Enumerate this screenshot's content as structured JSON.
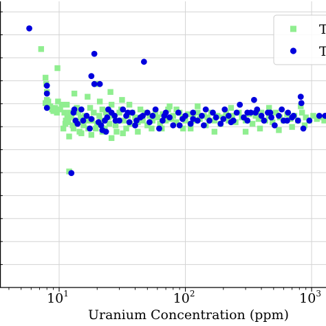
{
  "chart_data": {
    "type": "scatter",
    "xlabel": "Uranium Concentration (ppm)",
    "ylabel": "",
    "xscale": "log",
    "xlim": [
      3.4,
      1300
    ],
    "ylim": [
      -0.5,
      1.3
    ],
    "grid": true,
    "legend_placement": "top-right",
    "x_ticks": [
      {
        "base": "10",
        "exp": "1"
      },
      {
        "base": "10",
        "exp": "2"
      },
      {
        "base": "10",
        "exp": "3"
      }
    ],
    "series": [
      {
        "name": "T",
        "marker": "square",
        "color": "#90EE90",
        "points": [
          [
            7.2,
            1.0
          ],
          [
            7.8,
            0.82
          ],
          [
            7.9,
            0.78
          ],
          [
            8.0,
            0.73
          ],
          [
            8.0,
            0.68
          ],
          [
            7.8,
            0.66
          ],
          [
            7.9,
            0.66
          ],
          [
            8.2,
            0.67
          ],
          [
            8.5,
            0.64
          ],
          [
            8.8,
            0.62
          ],
          [
            9.0,
            0.61
          ],
          [
            9.3,
            0.63
          ],
          [
            9.6,
            0.6
          ],
          [
            9.8,
            0.67
          ],
          [
            10.2,
            0.62
          ],
          [
            10.5,
            0.65
          ],
          [
            9.7,
            0.88
          ],
          [
            11.0,
            0.6
          ],
          [
            11.3,
            0.55
          ],
          [
            11.6,
            0.57
          ],
          [
            11.2,
            0.53
          ],
          [
            11.8,
            0.54
          ],
          [
            12.0,
            0.57
          ],
          [
            12.2,
            0.6
          ],
          [
            12.5,
            0.58
          ],
          [
            12.8,
            0.52
          ],
          [
            13.0,
            0.5
          ],
          [
            13.4,
            0.55
          ],
          [
            13.8,
            0.63
          ],
          [
            14.2,
            0.6
          ],
          [
            14.8,
            0.57
          ],
          [
            15.2,
            0.54
          ],
          [
            15.6,
            0.52
          ],
          [
            16.0,
            0.58
          ],
          [
            16.5,
            0.55
          ],
          [
            17.0,
            0.5
          ],
          [
            17.6,
            0.63
          ],
          [
            18.2,
            0.55
          ],
          [
            18.8,
            0.6
          ],
          [
            19.5,
            0.78
          ],
          [
            20.0,
            0.53
          ],
          [
            20.8,
            0.58
          ],
          [
            21.5,
            0.55
          ],
          [
            22.0,
            0.62
          ],
          [
            23.0,
            0.5
          ],
          [
            23.5,
            0.6
          ],
          [
            24.5,
            0.57
          ],
          [
            25.0,
            0.53
          ],
          [
            26.0,
            0.65
          ],
          [
            27.0,
            0.58
          ],
          [
            28.0,
            0.52
          ],
          [
            29.0,
            0.55
          ],
          [
            30.0,
            0.6
          ],
          [
            31.0,
            0.62
          ],
          [
            32.5,
            0.55
          ],
          [
            34.0,
            0.5
          ],
          [
            35.0,
            0.58
          ],
          [
            36.5,
            0.53
          ],
          [
            38.0,
            0.6
          ],
          [
            40.0,
            0.57
          ],
          [
            42.0,
            0.54
          ],
          [
            44.0,
            0.62
          ],
          [
            46.0,
            0.55
          ],
          [
            48.0,
            0.6
          ],
          [
            50.0,
            0.52
          ],
          [
            52.0,
            0.58
          ],
          [
            55.0,
            0.55
          ],
          [
            58.0,
            0.6
          ],
          [
            60.0,
            0.57
          ],
          [
            63.0,
            0.53
          ],
          [
            66.0,
            0.59
          ],
          [
            70.0,
            0.55
          ],
          [
            73.0,
            0.62
          ],
          [
            77.0,
            0.56
          ],
          [
            80.0,
            0.58
          ],
          [
            85.0,
            0.54
          ],
          [
            90.0,
            0.6
          ],
          [
            95.0,
            0.57
          ],
          [
            100.0,
            0.55
          ],
          [
            105.0,
            0.59
          ],
          [
            110.0,
            0.53
          ],
          [
            115.0,
            0.58
          ],
          [
            120.0,
            0.55
          ],
          [
            125.0,
            0.6
          ],
          [
            130.0,
            0.56
          ],
          [
            140.0,
            0.58
          ],
          [
            145.0,
            0.52
          ],
          [
            150.0,
            0.57
          ],
          [
            160.0,
            0.6
          ],
          [
            170.0,
            0.55
          ],
          [
            180.0,
            0.58
          ],
          [
            190.0,
            0.53
          ],
          [
            200.0,
            0.57
          ],
          [
            210.0,
            0.6
          ],
          [
            220.0,
            0.55
          ],
          [
            235.0,
            0.58
          ],
          [
            250.0,
            0.54
          ],
          [
            265.0,
            0.6
          ],
          [
            280.0,
            0.57
          ],
          [
            300.0,
            0.55
          ],
          [
            320.0,
            0.59
          ],
          [
            340.0,
            0.53
          ],
          [
            360.0,
            0.58
          ],
          [
            380.0,
            0.56
          ],
          [
            400.0,
            0.6
          ],
          [
            430.0,
            0.55
          ],
          [
            460.0,
            0.58
          ],
          [
            490.0,
            0.54
          ],
          [
            520.0,
            0.6
          ],
          [
            560.0,
            0.57
          ],
          [
            600.0,
            0.55
          ],
          [
            640.0,
            0.59
          ],
          [
            680.0,
            0.56
          ],
          [
            730.0,
            0.58
          ],
          [
            780.0,
            0.55
          ],
          [
            840.0,
            0.6
          ],
          [
            900.0,
            0.57
          ],
          [
            960.0,
            0.55
          ],
          [
            1030.0,
            0.58
          ],
          [
            1100.0,
            0.56
          ],
          [
            1180.0,
            0.57
          ],
          [
            1260.0,
            0.55
          ],
          [
            10.8,
            0.5
          ],
          [
            12.0,
            0.45
          ],
          [
            15.0,
            0.47
          ],
          [
            22.0,
            0.48
          ],
          [
            18.0,
            0.46
          ],
          [
            11.5,
            0.65
          ],
          [
            13.2,
            0.72
          ],
          [
            16.8,
            0.7
          ],
          [
            21.0,
            0.67
          ],
          [
            25.5,
            0.73
          ],
          [
            31.5,
            0.68
          ],
          [
            42.0,
            0.48
          ],
          [
            65.0,
            0.5
          ],
          [
            85.0,
            0.62
          ],
          [
            96.0,
            0.5
          ],
          [
            12.0,
            0.23
          ],
          [
            26.0,
            0.44
          ],
          [
            32.0,
            0.47
          ],
          [
            54.0,
            0.5
          ],
          [
            110.0,
            0.5
          ],
          [
            170.0,
            0.48
          ],
          [
            300.0,
            0.48
          ],
          [
            390.0,
            0.5
          ],
          [
            550.0,
            0.49
          ],
          [
            700.0,
            0.51
          ],
          [
            880.0,
            0.52
          ],
          [
            14.5,
            0.48
          ],
          [
            19.5,
            0.5
          ],
          [
            28.5,
            0.48
          ],
          [
            36.0,
            0.65
          ],
          [
            75.0,
            0.64
          ],
          [
            125.0,
            0.64
          ],
          [
            230.0,
            0.63
          ],
          [
            460.0,
            0.63
          ],
          [
            820.0,
            0.64
          ]
        ]
      },
      {
        "name": "T",
        "marker": "circle",
        "color": "#0000DD",
        "points": [
          [
            5.8,
            1.13
          ],
          [
            8.0,
            0.77
          ],
          [
            8.0,
            0.72
          ],
          [
            8.0,
            0.63
          ],
          [
            13.0,
            0.6
          ],
          [
            13.5,
            0.55
          ],
          [
            14.0,
            0.53
          ],
          [
            15.0,
            0.62
          ],
          [
            16.5,
            0.58
          ],
          [
            17.5,
            0.5
          ],
          [
            18.0,
            0.56
          ],
          [
            19.0,
            0.97
          ],
          [
            19.0,
            0.78
          ],
          [
            20.5,
            0.54
          ],
          [
            21.0,
            0.78
          ],
          [
            21.5,
            0.52
          ],
          [
            22.0,
            0.49
          ],
          [
            23.0,
            0.55
          ],
          [
            24.5,
            0.62
          ],
          [
            26.0,
            0.6
          ],
          [
            27.5,
            0.58
          ],
          [
            30.0,
            0.55
          ],
          [
            32.0,
            0.62
          ],
          [
            34.0,
            0.58
          ],
          [
            36.0,
            0.54
          ],
          [
            38.0,
            0.6
          ],
          [
            41.0,
            0.55
          ],
          [
            44.0,
            0.57
          ],
          [
            47.0,
            0.92
          ],
          [
            50.0,
            0.6
          ],
          [
            55.0,
            0.58
          ],
          [
            58.0,
            0.62
          ],
          [
            62.0,
            0.5
          ],
          [
            66.0,
            0.55
          ],
          [
            70.0,
            0.6
          ],
          [
            75.0,
            0.57
          ],
          [
            80.0,
            0.52
          ],
          [
            88.0,
            0.6
          ],
          [
            95.0,
            0.56
          ],
          [
            100.0,
            0.58
          ],
          [
            110.0,
            0.53
          ],
          [
            115.0,
            0.6
          ],
          [
            125.0,
            0.55
          ],
          [
            135.0,
            0.58
          ],
          [
            145.0,
            0.62
          ],
          [
            155.0,
            0.55
          ],
          [
            165.0,
            0.6
          ],
          [
            175.0,
            0.57
          ],
          [
            190.0,
            0.53
          ],
          [
            205.0,
            0.62
          ],
          [
            220.0,
            0.58
          ],
          [
            240.0,
            0.55
          ],
          [
            255.0,
            0.6
          ],
          [
            270.0,
            0.65
          ],
          [
            290.0,
            0.57
          ],
          [
            310.0,
            0.55
          ],
          [
            330.0,
            0.6
          ],
          [
            350.0,
            0.68
          ],
          [
            370.0,
            0.62
          ],
          [
            400.0,
            0.58
          ],
          [
            420.0,
            0.55
          ],
          [
            450.0,
            0.6
          ],
          [
            480.0,
            0.57
          ],
          [
            510.0,
            0.52
          ],
          [
            550.0,
            0.58
          ],
          [
            600.0,
            0.55
          ],
          [
            650.0,
            0.6
          ],
          [
            700.0,
            0.57
          ],
          [
            780.0,
            0.55
          ],
          [
            820.0,
            0.7
          ],
          [
            830.0,
            0.66
          ],
          [
            860.0,
            0.5
          ],
          [
            960.0,
            0.55
          ],
          [
            1150.0,
            0.58
          ],
          [
            1280.0,
            0.58
          ],
          [
            12.5,
            0.22
          ],
          [
            13.2,
            0.62
          ],
          [
            18.0,
            0.83
          ],
          [
            23.5,
            0.48
          ],
          [
            28.0,
            0.55
          ],
          [
            40.0,
            0.52
          ],
          [
            52.0,
            0.54
          ],
          [
            90.0,
            0.52
          ],
          [
            140.0,
            0.52
          ],
          [
            230.0,
            0.54
          ],
          [
            360.0,
            0.6
          ],
          [
            580.0,
            0.62
          ],
          [
            640.0,
            0.55
          ],
          [
            15.5,
            0.55
          ],
          [
            24.0,
            0.57
          ],
          [
            35.0,
            0.6
          ],
          [
            46.0,
            0.58
          ],
          [
            68.0,
            0.58
          ],
          [
            115.0,
            0.56
          ],
          [
            200.0,
            0.56
          ],
          [
            310.0,
            0.6
          ],
          [
            470.0,
            0.6
          ],
          [
            720.0,
            0.58
          ]
        ]
      }
    ]
  }
}
